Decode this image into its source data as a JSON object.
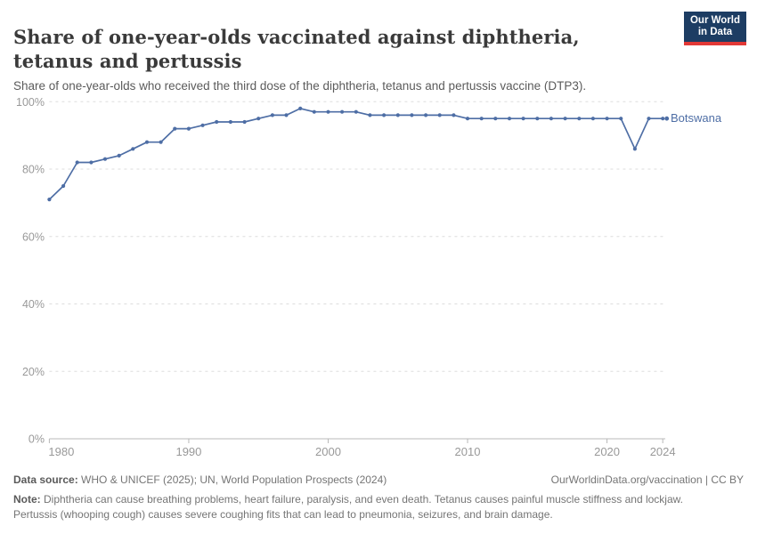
{
  "header": {
    "title": "Share of one-year-olds vaccinated against diphtheria, tetanus and pertussis",
    "subtitle": "Share of one-year-olds who received the third dose of the diphtheria, tetanus and pertussis vaccine (DTP3).",
    "logo": {
      "line1": "Our World",
      "line2": "in Data"
    }
  },
  "chart_data": {
    "type": "line",
    "title": "Share of one-year-olds vaccinated against diphtheria, tetanus and pertussis",
    "subtitle": "Share of one-year-olds who received the third dose of the diphtheria, tetanus and pertussis vaccine (DTP3).",
    "entity": "Botswana",
    "x": [
      1980,
      1981,
      1982,
      1983,
      1984,
      1985,
      1986,
      1987,
      1988,
      1989,
      1990,
      1991,
      1992,
      1993,
      1994,
      1995,
      1996,
      1997,
      1998,
      1999,
      2000,
      2001,
      2002,
      2003,
      2004,
      2005,
      2006,
      2007,
      2008,
      2009,
      2010,
      2011,
      2012,
      2013,
      2014,
      2015,
      2016,
      2017,
      2018,
      2019,
      2020,
      2021,
      2022,
      2023,
      2024
    ],
    "series": [
      {
        "name": "Botswana",
        "values": [
          71,
          75,
          82,
          82,
          83,
          84,
          86,
          88,
          88,
          92,
          92,
          93,
          94,
          94,
          94,
          95,
          96,
          96,
          98,
          97,
          97,
          97,
          97,
          96,
          96,
          96,
          96,
          96,
          96,
          96,
          95,
          95,
          95,
          95,
          95,
          95,
          95,
          95,
          95,
          95,
          95,
          95,
          86,
          95,
          95
        ]
      }
    ],
    "xlabel": "",
    "ylabel": "",
    "ylim": [
      0,
      100
    ],
    "xlim": [
      1980,
      2024
    ],
    "yticks": [
      0,
      20,
      40,
      60,
      80,
      100
    ],
    "ytick_suffix": "%",
    "xticks": [
      1980,
      1990,
      2000,
      2010,
      2020,
      2024
    ],
    "grid": "horizontal-dashed",
    "legend_position": "line-end-label",
    "line_color": "#4e6ea5",
    "grid_color": "#dddddd",
    "axis_color": "#b8b8b8",
    "tick_text_color": "#999999"
  },
  "footer": {
    "datasource_label": "Data source:",
    "datasource_text": " WHO & UNICEF (2025); UN, World Population Prospects (2024)",
    "rights": "OurWorldinData.org/vaccination | CC BY",
    "note_label": "Note:",
    "note_text": " Diphtheria can cause breathing problems, heart failure, paralysis, and even death. Tetanus causes painful muscle stiffness and lockjaw. Pertussis (whooping cough) causes severe coughing fits that can lead to pneumonia, seizures, and brain damage."
  },
  "colors": {
    "logo_bg": "#1d3d63",
    "logo_stripe": "#e23836",
    "title_text": "#3a3a3a",
    "subtitle_text": "#5b5b5b",
    "footer_text": "#757575"
  }
}
